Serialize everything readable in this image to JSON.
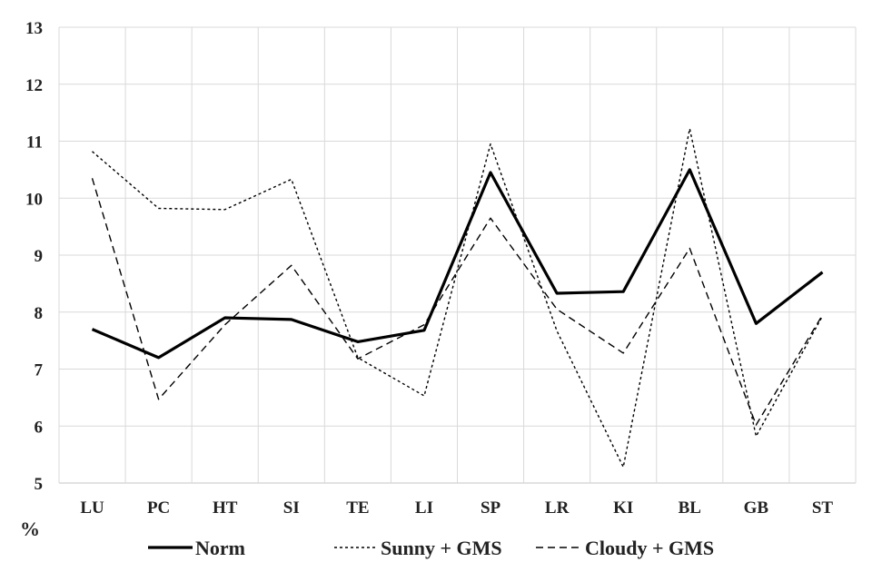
{
  "chart_data": {
    "type": "line",
    "ylabel": "%",
    "ylim": [
      5,
      13
    ],
    "yticks": [
      5,
      6,
      7,
      8,
      9,
      10,
      11,
      12,
      13
    ],
    "grid": true,
    "legend_position": "bottom",
    "categories": [
      "LU",
      "PC",
      "HT",
      "SI",
      "TE",
      "LI",
      "SP",
      "LR",
      "KI",
      "BL",
      "GB",
      "ST"
    ],
    "series": [
      {
        "name": "Norm",
        "style": "solid-thick",
        "color": "#000000",
        "values": [
          7.7,
          7.2,
          7.9,
          7.87,
          7.48,
          7.68,
          10.45,
          8.33,
          8.36,
          10.5,
          7.8,
          8.7
        ]
      },
      {
        "name": "Sunny + GMS",
        "style": "short-dash",
        "color": "#000000",
        "values": [
          10.82,
          9.82,
          9.8,
          10.33,
          7.2,
          6.53,
          10.95,
          7.67,
          5.28,
          11.22,
          5.82,
          7.93
        ]
      },
      {
        "name": "Cloudy + GMS",
        "style": "long-dash",
        "color": "#000000",
        "values": [
          10.35,
          6.47,
          7.78,
          8.82,
          7.18,
          7.78,
          9.65,
          8.05,
          7.28,
          9.12,
          6.02,
          7.95
        ]
      }
    ]
  }
}
